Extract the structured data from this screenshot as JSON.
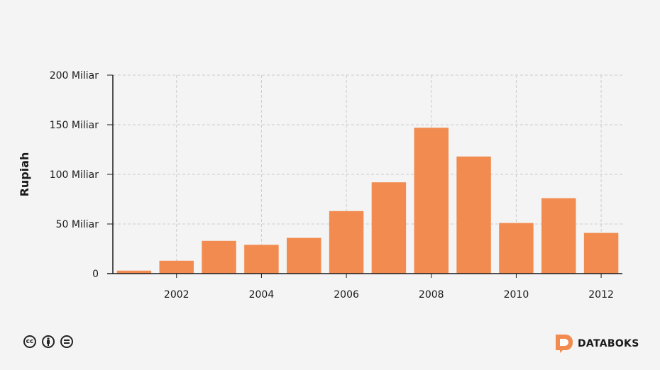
{
  "chart_data": {
    "type": "bar",
    "categories": [
      "2001",
      "2002",
      "2003",
      "2004",
      "2005",
      "2006",
      "2007",
      "2008",
      "2009",
      "2010",
      "2011",
      "2012"
    ],
    "values": [
      3,
      13,
      33,
      29,
      36,
      63,
      92,
      147,
      118,
      51,
      76,
      41
    ],
    "ylabel": "Rupiah",
    "xlabel": "",
    "ylim": [
      0,
      200
    ],
    "yticks": [
      {
        "value": 0,
        "label": "0"
      },
      {
        "value": 50,
        "label": "50 Miliar"
      },
      {
        "value": 100,
        "label": "100 Miliar"
      },
      {
        "value": 150,
        "label": "150 Miliar"
      },
      {
        "value": 200,
        "label": "200 Miliar"
      }
    ],
    "xtick_labels": [
      "2002",
      "2004",
      "2006",
      "2008",
      "2010",
      "2012"
    ],
    "grid": true,
    "bar_color": "#f28b4f"
  },
  "footer": {
    "license_icons": [
      "cc-icon",
      "attribution-icon",
      "no-derivatives-icon"
    ],
    "brand": "DATABOKS",
    "brand_color": "#f28b4f"
  }
}
